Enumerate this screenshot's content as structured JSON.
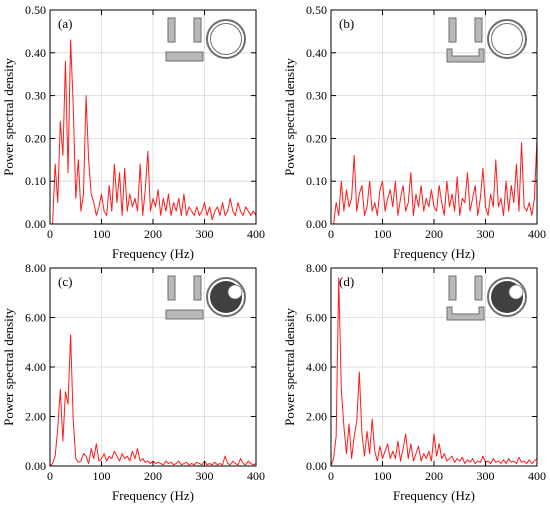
{
  "figure": {
    "xlabel": "Frequency (Hz)",
    "ylabel": "Power spectral density"
  },
  "colors": {
    "line": "#ff1a1a",
    "grid": "#d8d8d8",
    "insetFill": "#b8b8b8",
    "insetDark": "#404040",
    "insetStroke": "#6e6e6e"
  },
  "chart_data": [
    {
      "type": "line",
      "label": "(a)",
      "inset": {
        "piece": "rect",
        "circle": "open"
      },
      "xlim": [
        0,
        400
      ],
      "ylim": [
        0,
        0.5
      ],
      "xticks": [
        0,
        100,
        200,
        300,
        400
      ],
      "yticks": [
        0,
        0.1,
        0.2,
        0.3,
        0.4,
        0.5
      ],
      "ytick_labels": [
        "0.00",
        "0.10",
        "0.20",
        "0.30",
        "0.40",
        "0.50"
      ],
      "grid": true,
      "series": [
        {
          "x": [
            0,
            5,
            10,
            15,
            20,
            25,
            30,
            35,
            40,
            45,
            50,
            55,
            60,
            65,
            70,
            75,
            80,
            85,
            90,
            95,
            100,
            105,
            110,
            115,
            120,
            125,
            130,
            135,
            140,
            145,
            150,
            155,
            160,
            165,
            170,
            175,
            180,
            185,
            190,
            195,
            200,
            205,
            210,
            215,
            220,
            225,
            230,
            235,
            240,
            245,
            250,
            255,
            260,
            265,
            270,
            275,
            280,
            285,
            290,
            295,
            300,
            305,
            310,
            315,
            320,
            325,
            330,
            335,
            340,
            345,
            350,
            355,
            360,
            365,
            370,
            375,
            380,
            385,
            390,
            395,
            400
          ],
          "y": [
            0.0,
            0.0,
            0.14,
            0.05,
            0.24,
            0.16,
            0.38,
            0.12,
            0.43,
            0.28,
            0.06,
            0.15,
            0.03,
            0.07,
            0.3,
            0.15,
            0.07,
            0.05,
            0.02,
            0.04,
            0.07,
            0.03,
            0.02,
            0.09,
            0.03,
            0.14,
            0.05,
            0.12,
            0.02,
            0.13,
            0.03,
            0.07,
            0.04,
            0.06,
            0.03,
            0.14,
            0.02,
            0.08,
            0.17,
            0.03,
            0.06,
            0.04,
            0.08,
            0.02,
            0.06,
            0.03,
            0.07,
            0.02,
            0.05,
            0.03,
            0.06,
            0.02,
            0.07,
            0.02,
            0.04,
            0.03,
            0.02,
            0.04,
            0.02,
            0.03,
            0.05,
            0.02,
            0.04,
            0.01,
            0.03,
            0.04,
            0.02,
            0.05,
            0.02,
            0.03,
            0.06,
            0.03,
            0.02,
            0.05,
            0.03,
            0.02,
            0.04,
            0.03,
            0.02,
            0.03,
            0.02
          ]
        }
      ]
    },
    {
      "type": "line",
      "label": "(b)",
      "inset": {
        "piece": "channel",
        "circle": "open"
      },
      "xlim": [
        0,
        400
      ],
      "ylim": [
        0,
        0.5
      ],
      "xticks": [
        0,
        100,
        200,
        300,
        400
      ],
      "yticks": [
        0,
        0.1,
        0.2,
        0.3,
        0.4,
        0.5
      ],
      "ytick_labels": [
        "0.00",
        "0.10",
        "0.20",
        "0.30",
        "0.40",
        "0.50"
      ],
      "grid": true,
      "series": [
        {
          "x": [
            0,
            5,
            10,
            15,
            20,
            25,
            30,
            35,
            40,
            45,
            50,
            55,
            60,
            65,
            70,
            75,
            80,
            85,
            90,
            95,
            100,
            105,
            110,
            115,
            120,
            125,
            130,
            135,
            140,
            145,
            150,
            155,
            160,
            165,
            170,
            175,
            180,
            185,
            190,
            195,
            200,
            205,
            210,
            215,
            220,
            225,
            230,
            235,
            240,
            245,
            250,
            255,
            260,
            265,
            270,
            275,
            280,
            285,
            290,
            295,
            300,
            305,
            310,
            315,
            320,
            325,
            330,
            335,
            340,
            345,
            350,
            355,
            360,
            365,
            370,
            375,
            380,
            385,
            390,
            395,
            400
          ],
          "y": [
            0.0,
            0.0,
            0.05,
            0.02,
            0.1,
            0.03,
            0.08,
            0.04,
            0.06,
            0.16,
            0.03,
            0.07,
            0.09,
            0.02,
            0.04,
            0.1,
            0.03,
            0.05,
            0.02,
            0.08,
            0.1,
            0.03,
            0.06,
            0.08,
            0.04,
            0.1,
            0.02,
            0.06,
            0.09,
            0.03,
            0.05,
            0.12,
            0.02,
            0.07,
            0.04,
            0.09,
            0.03,
            0.06,
            0.04,
            0.08,
            0.04,
            0.03,
            0.09,
            0.05,
            0.02,
            0.1,
            0.04,
            0.07,
            0.03,
            0.11,
            0.02,
            0.06,
            0.05,
            0.12,
            0.03,
            0.06,
            0.09,
            0.02,
            0.06,
            0.13,
            0.04,
            0.02,
            0.07,
            0.04,
            0.15,
            0.04,
            0.06,
            0.02,
            0.1,
            0.03,
            0.09,
            0.05,
            0.14,
            0.03,
            0.19,
            0.04,
            0.03,
            0.05,
            0.02,
            0.06,
            0.2
          ]
        }
      ]
    },
    {
      "type": "line",
      "label": "(c)",
      "inset": {
        "piece": "rect",
        "circle": "filled"
      },
      "xlim": [
        0,
        400
      ],
      "ylim": [
        0,
        8
      ],
      "xticks": [
        0,
        100,
        200,
        300,
        400
      ],
      "yticks": [
        0,
        2,
        4,
        6,
        8
      ],
      "ytick_labels": [
        "0.00",
        "2.00",
        "4.00",
        "6.00",
        "8.00"
      ],
      "grid": true,
      "series": [
        {
          "x": [
            0,
            5,
            10,
            15,
            20,
            25,
            30,
            35,
            40,
            45,
            50,
            55,
            60,
            65,
            70,
            75,
            80,
            85,
            90,
            95,
            100,
            105,
            110,
            115,
            120,
            125,
            130,
            135,
            140,
            145,
            150,
            155,
            160,
            165,
            170,
            175,
            180,
            185,
            190,
            195,
            200,
            205,
            210,
            215,
            220,
            225,
            230,
            235,
            240,
            245,
            250,
            255,
            260,
            265,
            270,
            275,
            280,
            285,
            290,
            295,
            300,
            305,
            310,
            315,
            320,
            325,
            330,
            335,
            340,
            345,
            350,
            355,
            360,
            365,
            370,
            375,
            380,
            385,
            390,
            395,
            400
          ],
          "y": [
            0.0,
            0.1,
            0.4,
            1.5,
            3.1,
            1.0,
            3.0,
            2.5,
            5.3,
            1.9,
            0.3,
            0.15,
            0.2,
            0.5,
            0.4,
            0.1,
            0.7,
            0.3,
            0.9,
            0.2,
            0.3,
            0.5,
            0.2,
            0.4,
            0.3,
            0.6,
            0.4,
            0.2,
            0.5,
            0.3,
            0.4,
            0.2,
            0.6,
            0.3,
            0.7,
            0.2,
            0.3,
            0.15,
            0.2,
            0.1,
            0.2,
            0.1,
            0.15,
            0.1,
            0.05,
            0.2,
            0.1,
            0.15,
            0.05,
            0.1,
            0.2,
            0.05,
            0.1,
            0.15,
            0.05,
            0.1,
            0.05,
            0.15,
            0.1,
            0.05,
            0.2,
            0.05,
            0.1,
            0.05,
            0.15,
            0.05,
            0.1,
            0.05,
            0.4,
            0.1,
            0.05,
            0.2,
            0.1,
            0.05,
            0.3,
            0.1,
            0.05,
            0.2,
            0.1,
            0.05,
            0.1
          ]
        }
      ]
    },
    {
      "type": "line",
      "label": "(d)",
      "inset": {
        "piece": "channel",
        "circle": "filled"
      },
      "xlim": [
        0,
        400
      ],
      "ylim": [
        0,
        8
      ],
      "xticks": [
        0,
        100,
        200,
        300,
        400
      ],
      "yticks": [
        0,
        2,
        4,
        6,
        8
      ],
      "ytick_labels": [
        "0.00",
        "2.00",
        "4.00",
        "6.00",
        "8.00"
      ],
      "grid": true,
      "series": [
        {
          "x": [
            0,
            5,
            10,
            15,
            20,
            25,
            30,
            35,
            40,
            45,
            50,
            55,
            60,
            65,
            70,
            75,
            80,
            85,
            90,
            95,
            100,
            105,
            110,
            115,
            120,
            125,
            130,
            135,
            140,
            145,
            150,
            155,
            160,
            165,
            170,
            175,
            180,
            185,
            190,
            195,
            200,
            205,
            210,
            215,
            220,
            225,
            230,
            235,
            240,
            245,
            250,
            255,
            260,
            265,
            270,
            275,
            280,
            285,
            290,
            295,
            300,
            305,
            310,
            315,
            320,
            325,
            330,
            335,
            340,
            345,
            350,
            355,
            360,
            365,
            370,
            375,
            380,
            385,
            390,
            395,
            400
          ],
          "y": [
            0.0,
            0.3,
            1.2,
            7.6,
            3.1,
            1.6,
            0.5,
            1.7,
            0.3,
            1.2,
            1.8,
            3.8,
            1.3,
            0.4,
            1.4,
            0.5,
            1.9,
            0.6,
            0.2,
            0.8,
            0.3,
            0.6,
            0.9,
            0.3,
            0.6,
            0.3,
            1.0,
            0.2,
            0.7,
            1.3,
            0.3,
            0.9,
            0.2,
            0.5,
            0.8,
            0.2,
            0.5,
            0.3,
            0.6,
            0.2,
            1.3,
            0.4,
            0.9,
            0.3,
            0.5,
            0.2,
            0.3,
            0.4,
            0.15,
            0.3,
            0.2,
            0.35,
            0.1,
            0.25,
            0.15,
            0.3,
            0.1,
            0.2,
            0.15,
            0.4,
            0.15,
            0.2,
            0.1,
            0.3,
            0.15,
            0.2,
            0.1,
            0.25,
            0.1,
            0.3,
            0.15,
            0.2,
            0.1,
            0.35,
            0.15,
            0.2,
            0.1,
            0.25,
            0.1,
            0.2,
            0.3
          ]
        }
      ]
    }
  ]
}
